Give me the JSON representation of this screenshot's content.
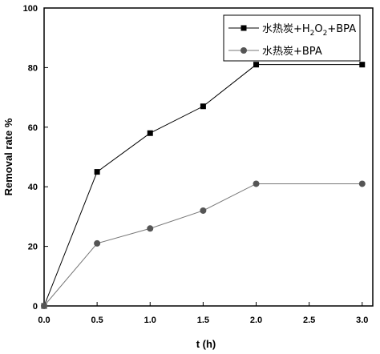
{
  "chart_data": {
    "type": "line",
    "xlabel": "t (h)",
    "ylabel": "Removal rate %",
    "xlim": [
      0.0,
      3.1
    ],
    "ylim": [
      0,
      100
    ],
    "xticks": [
      "0.0",
      "0.5",
      "1.0",
      "1.5",
      "2.0",
      "2.5",
      "3.0"
    ],
    "yticks": [
      "0",
      "20",
      "40",
      "60",
      "80",
      "100"
    ],
    "grid": false,
    "legend_position": "top-right",
    "series": [
      {
        "name": "水热炭+H2O2+BPA",
        "name_parts": [
          "水热炭+H",
          "2",
          "O",
          "2",
          "+BPA"
        ],
        "marker": "square",
        "x": [
          0,
          0.5,
          1.0,
          1.5,
          2.0,
          3.0
        ],
        "y": [
          0,
          45,
          58,
          67,
          81,
          81
        ]
      },
      {
        "name": "水热炭+BPA",
        "marker": "circle",
        "x": [
          0,
          0.5,
          1.0,
          1.5,
          2.0,
          3.0
        ],
        "y": [
          0,
          21,
          26,
          32,
          41,
          41
        ]
      }
    ]
  }
}
